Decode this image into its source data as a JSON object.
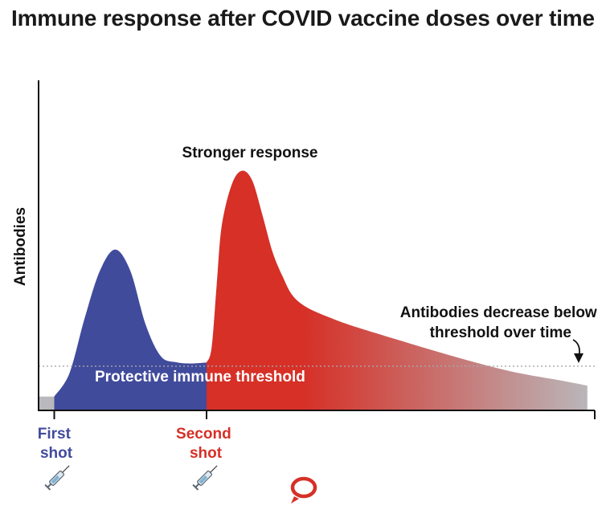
{
  "title": "Immune response after COVID vaccine doses over time",
  "colors": {
    "first_dose": "#414b9c",
    "second_dose": "#d63027",
    "waning": "#b9b9bd",
    "threshold": "#a7a7b0",
    "axis": "#111111"
  },
  "icons": {
    "first_shot": "syringe-icon",
    "second_shot": "syringe-icon",
    "logo": "speech-bubble-logo"
  },
  "chart_data": {
    "type": "area",
    "title": "Immune response after COVID vaccine doses over time",
    "xlabel": "",
    "ylabel": "Antibodies",
    "ylim": [
      0,
      100
    ],
    "x_ticks": [
      {
        "label": "First shot",
        "x": 0
      },
      {
        "label": "Second shot",
        "x": 30
      }
    ],
    "threshold": {
      "label": "Protective immune threshold",
      "y": 13.4
    },
    "series": [
      {
        "name": "",
        "x": [
          -3,
          0,
          3,
          6,
          9,
          12,
          15,
          18,
          21,
          24,
          27,
          30
        ],
        "y": [
          4.2,
          4.2,
          11.3,
          28,
          42.3,
          48.7,
          42.2,
          26,
          16.4,
          14.6,
          14.2,
          14.5
        ]
      },
      {
        "name": "",
        "x": [
          30,
          31,
          32,
          33,
          35,
          37,
          39,
          41,
          43,
          45,
          47,
          50,
          55,
          60,
          70,
          80,
          90,
          100,
          105
        ],
        "y": [
          14.5,
          19,
          38,
          56,
          68.6,
          72.6,
          69.6,
          59.2,
          48,
          40.5,
          34.7,
          31,
          27.7,
          25,
          20.3,
          15.8,
          11.8,
          9,
          7.5
        ]
      }
    ],
    "annotations": [
      {
        "text": "Stronger response",
        "x": 38,
        "y": 78
      },
      {
        "text": "Antibodies decrease below threshold over time",
        "x": 95,
        "y": 25
      }
    ]
  }
}
